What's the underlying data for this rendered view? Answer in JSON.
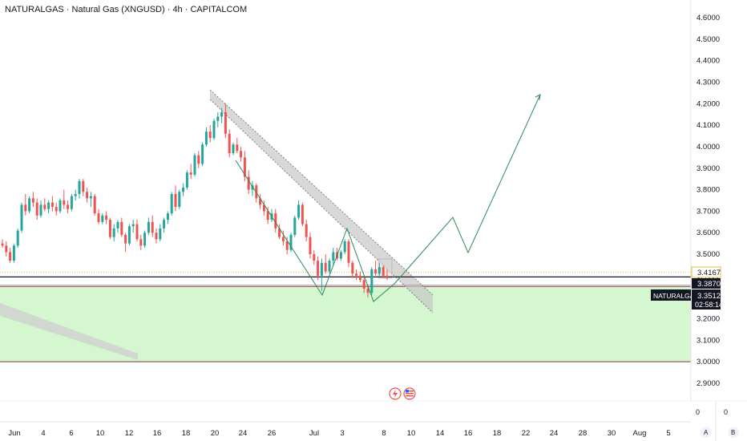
{
  "header": {
    "title": "NATURALGAS · Natural Gas (XNGUSD) · 4h · CAPITALCOM"
  },
  "colors": {
    "up": "#26a69a",
    "down": "#ef5350",
    "zone_fill": "#d4f7cf",
    "zone_line": "#8b2d3c",
    "channel_fill": "#c8c8c8",
    "path": "#2e8b57",
    "gold_dotted": "#e6b84a",
    "axis_text": "#131722"
  },
  "chart_data": {
    "type": "candlestick",
    "title": "NATURALGAS · Natural Gas (XNGUSD) · 4h · CAPITALCOM",
    "price_axis": {
      "ylim": [
        2.85,
        4.65
      ],
      "ticks": [
        "4.6000",
        "4.5000",
        "4.4000",
        "4.3000",
        "4.2000",
        "4.1000",
        "4.0000",
        "3.9000",
        "3.8000",
        "3.7000",
        "3.6000",
        "3.5000",
        "3.4000",
        "3.3000",
        "3.2000",
        "3.1000",
        "3.0000",
        "2.9000"
      ]
    },
    "time_axis": {
      "labels": [
        "Jun",
        "4",
        "6",
        "10",
        "12",
        "16",
        "18",
        "20",
        "24",
        "26",
        "Jul",
        "3",
        "8",
        "10",
        "14",
        "16",
        "18",
        "22",
        "24",
        "28",
        "30",
        "Aug",
        "5"
      ]
    },
    "price_tags": [
      {
        "value": "3.4167",
        "style": "gold"
      },
      {
        "value": "3.3870",
        "style": "dark"
      },
      {
        "value": "3.3512",
        "style": "dark"
      }
    ],
    "symbol_tag": "NATURALGAS",
    "countdown": "02:58:14",
    "extra_scale": {
      "left": "0",
      "right": "0"
    },
    "corner_buttons": [
      "A",
      "B"
    ],
    "grid": false,
    "candles": [
      [
        3.55,
        3.57,
        3.53,
        3.54
      ],
      [
        3.54,
        3.56,
        3.49,
        3.51
      ],
      [
        3.51,
        3.53,
        3.46,
        3.47
      ],
      [
        3.47,
        3.55,
        3.46,
        3.54
      ],
      [
        3.54,
        3.62,
        3.53,
        3.61
      ],
      [
        3.61,
        3.74,
        3.6,
        3.73
      ],
      [
        3.73,
        3.78,
        3.68,
        3.7
      ],
      [
        3.7,
        3.77,
        3.69,
        3.76
      ],
      [
        3.76,
        3.79,
        3.72,
        3.74
      ],
      [
        3.74,
        3.76,
        3.66,
        3.68
      ],
      [
        3.68,
        3.75,
        3.67,
        3.73
      ],
      [
        3.73,
        3.76,
        3.7,
        3.71
      ],
      [
        3.71,
        3.75,
        3.69,
        3.74
      ],
      [
        3.74,
        3.77,
        3.7,
        3.72
      ],
      [
        3.72,
        3.74,
        3.68,
        3.7
      ],
      [
        3.7,
        3.76,
        3.69,
        3.75
      ],
      [
        3.75,
        3.8,
        3.71,
        3.73
      ],
      [
        3.73,
        3.75,
        3.69,
        3.71
      ],
      [
        3.71,
        3.78,
        3.7,
        3.77
      ],
      [
        3.77,
        3.8,
        3.75,
        3.78
      ],
      [
        3.78,
        3.85,
        3.76,
        3.84
      ],
      [
        3.84,
        3.85,
        3.77,
        3.79
      ],
      [
        3.79,
        3.81,
        3.74,
        3.76
      ],
      [
        3.76,
        3.79,
        3.72,
        3.77
      ],
      [
        3.77,
        3.78,
        3.68,
        3.69
      ],
      [
        3.69,
        3.71,
        3.64,
        3.65
      ],
      [
        3.65,
        3.69,
        3.64,
        3.68
      ],
      [
        3.68,
        3.7,
        3.64,
        3.66
      ],
      [
        3.66,
        3.67,
        3.57,
        3.58
      ],
      [
        3.58,
        3.64,
        3.56,
        3.62
      ],
      [
        3.62,
        3.66,
        3.6,
        3.65
      ],
      [
        3.65,
        3.67,
        3.58,
        3.59
      ],
      [
        3.59,
        3.6,
        3.51,
        3.55
      ],
      [
        3.55,
        3.64,
        3.54,
        3.63
      ],
      [
        3.63,
        3.66,
        3.6,
        3.64
      ],
      [
        3.64,
        3.66,
        3.56,
        3.57
      ],
      [
        3.57,
        3.59,
        3.52,
        3.54
      ],
      [
        3.54,
        3.61,
        3.53,
        3.6
      ],
      [
        3.6,
        3.67,
        3.59,
        3.65
      ],
      [
        3.65,
        3.68,
        3.58,
        3.6
      ],
      [
        3.6,
        3.62,
        3.55,
        3.57
      ],
      [
        3.57,
        3.64,
        3.56,
        3.62
      ],
      [
        3.62,
        3.67,
        3.6,
        3.66
      ],
      [
        3.66,
        3.7,
        3.64,
        3.69
      ],
      [
        3.69,
        3.79,
        3.68,
        3.78
      ],
      [
        3.78,
        3.82,
        3.7,
        3.72
      ],
      [
        3.72,
        3.8,
        3.71,
        3.79
      ],
      [
        3.79,
        3.83,
        3.77,
        3.81
      ],
      [
        3.81,
        3.89,
        3.8,
        3.88
      ],
      [
        3.88,
        3.92,
        3.85,
        3.87
      ],
      [
        3.87,
        3.97,
        3.86,
        3.96
      ],
      [
        3.96,
        3.98,
        3.9,
        3.92
      ],
      [
        3.92,
        4.02,
        3.91,
        4.01
      ],
      [
        4.01,
        4.09,
        4.0,
        4.07
      ],
      [
        4.07,
        4.1,
        4.02,
        4.04
      ],
      [
        4.04,
        4.13,
        4.03,
        4.12
      ],
      [
        4.12,
        4.16,
        4.09,
        4.14
      ],
      [
        4.14,
        4.18,
        4.11,
        4.16
      ],
      [
        4.16,
        4.2,
        4.04,
        4.06
      ],
      [
        4.06,
        4.08,
        3.95,
        3.97
      ],
      [
        3.97,
        4.02,
        3.96,
        4.01
      ],
      [
        4.01,
        4.04,
        3.97,
        3.98
      ],
      [
        3.98,
        4.0,
        3.93,
        3.95
      ],
      [
        3.95,
        3.98,
        3.84,
        3.86
      ],
      [
        3.86,
        3.89,
        3.78,
        3.8
      ],
      [
        3.8,
        3.84,
        3.77,
        3.82
      ],
      [
        3.82,
        3.83,
        3.74,
        3.76
      ],
      [
        3.76,
        3.78,
        3.71,
        3.73
      ],
      [
        3.73,
        3.75,
        3.68,
        3.7
      ],
      [
        3.7,
        3.72,
        3.64,
        3.66
      ],
      [
        3.66,
        3.71,
        3.65,
        3.69
      ],
      [
        3.69,
        3.71,
        3.6,
        3.62
      ],
      [
        3.62,
        3.64,
        3.57,
        3.58
      ],
      [
        3.58,
        3.61,
        3.54,
        3.56
      ],
      [
        3.56,
        3.58,
        3.5,
        3.52
      ],
      [
        3.52,
        3.6,
        3.51,
        3.59
      ],
      [
        3.59,
        3.68,
        3.58,
        3.67
      ],
      [
        3.67,
        3.75,
        3.66,
        3.73
      ],
      [
        3.73,
        3.74,
        3.63,
        3.64
      ],
      [
        3.64,
        3.66,
        3.56,
        3.58
      ],
      [
        3.58,
        3.6,
        3.48,
        3.5
      ],
      [
        3.5,
        3.52,
        3.45,
        3.47
      ],
      [
        3.47,
        3.49,
        3.38,
        3.4
      ],
      [
        3.4,
        3.48,
        3.33,
        3.46
      ],
      [
        3.46,
        3.5,
        3.41,
        3.42
      ],
      [
        3.42,
        3.48,
        3.41,
        3.47
      ],
      [
        3.47,
        3.53,
        3.45,
        3.51
      ],
      [
        3.51,
        3.53,
        3.47,
        3.48
      ],
      [
        3.48,
        3.52,
        3.47,
        3.51
      ],
      [
        3.51,
        3.57,
        3.5,
        3.56
      ],
      [
        3.56,
        3.57,
        3.44,
        3.46
      ],
      [
        3.46,
        3.47,
        3.39,
        3.41
      ],
      [
        3.41,
        3.43,
        3.38,
        3.4
      ],
      [
        3.4,
        3.42,
        3.37,
        3.38
      ],
      [
        3.38,
        3.39,
        3.32,
        3.34
      ],
      [
        3.34,
        3.36,
        3.3,
        3.32
      ],
      [
        3.32,
        3.44,
        3.31,
        3.43
      ],
      [
        3.43,
        3.47,
        3.4,
        3.41
      ],
      [
        3.41,
        3.46,
        3.4,
        3.44
      ],
      [
        3.44,
        3.45,
        3.39,
        3.4
      ],
      [
        3.4,
        3.43,
        3.38,
        3.39
      ]
    ],
    "annotations": {
      "support_zone": [
        3.0,
        3.35
      ],
      "horizontal_levels": [
        3.4167,
        3.387,
        3.3512
      ],
      "descending_channel": "gray band from the 4.2 high down to about 3.25",
      "projection_path": "zigzag up from about 3.39 toward 4.25"
    }
  }
}
